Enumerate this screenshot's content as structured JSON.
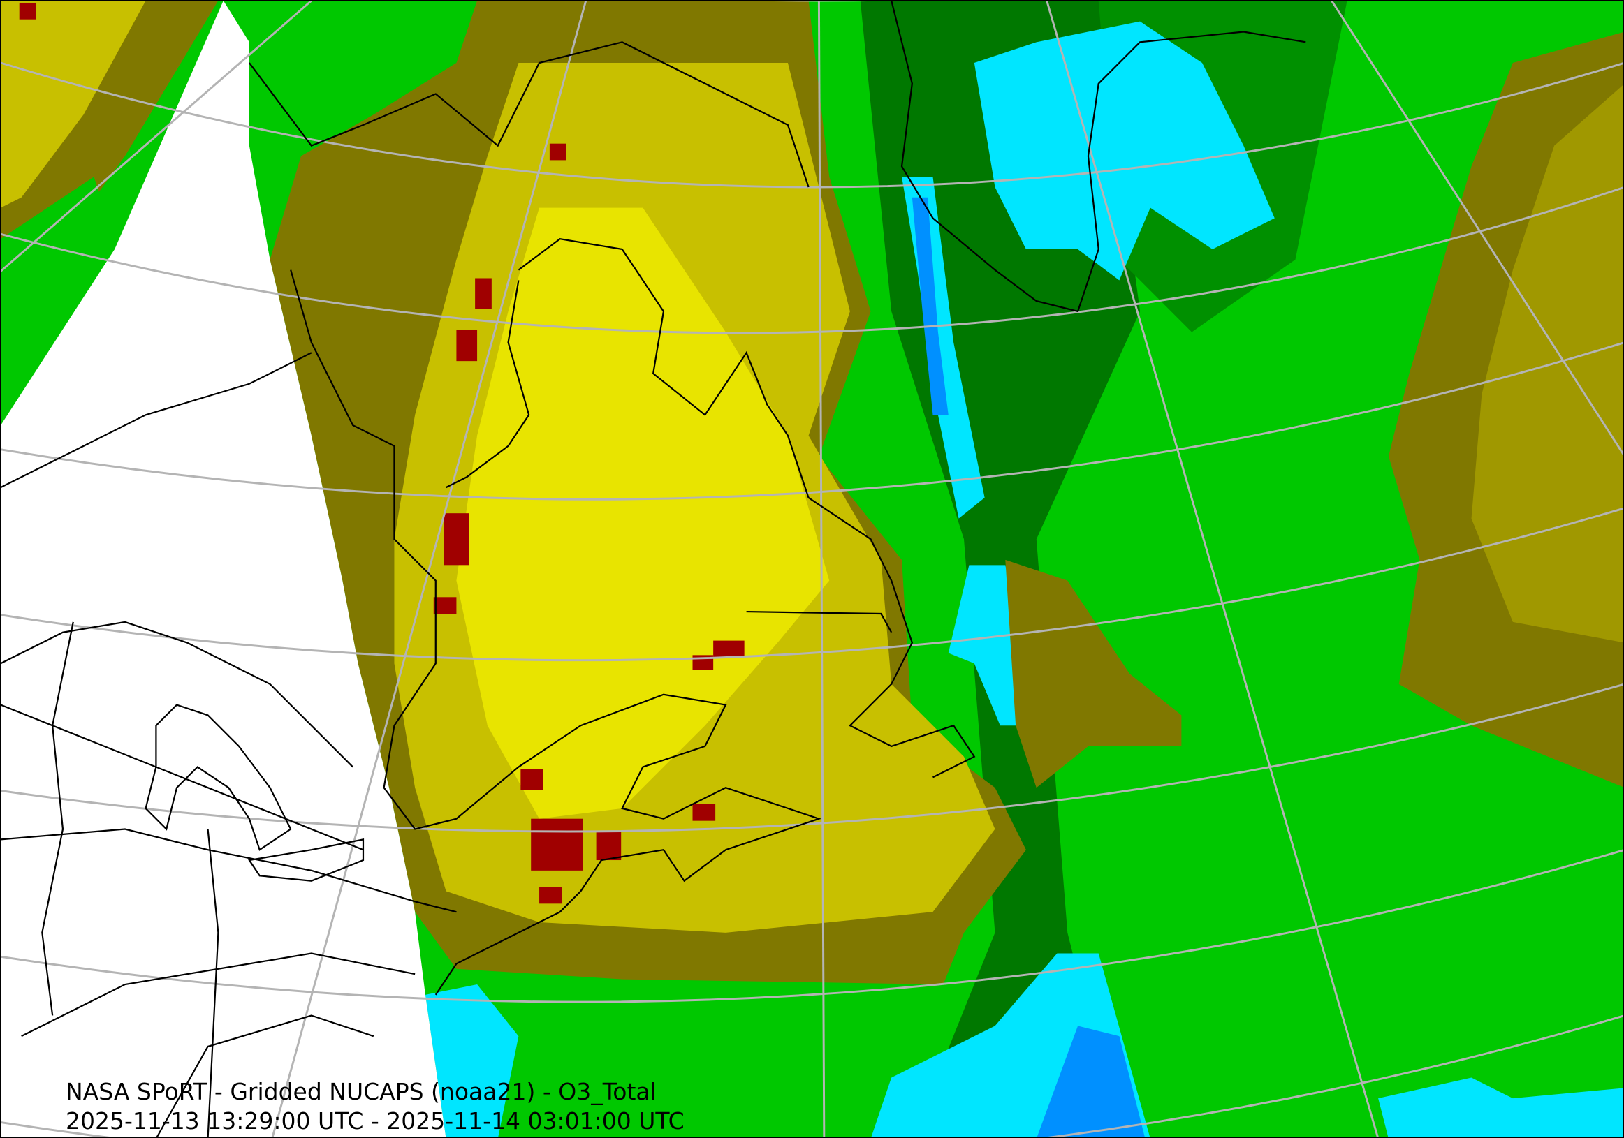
{
  "map": {
    "title_line1": "NASA SPoRT - Gridded NUCAPS (noaa21) - O3_Total",
    "title_line2": "2025-11-13 13:29:00 UTC - 2025-11-14 03:01:00 UTC",
    "product": "O3_Total",
    "satellite": "noaa21",
    "colors": {
      "no_data": "#ffffff",
      "green": "#00c800",
      "bright_green": "#00e600",
      "dark_green": "#007800",
      "olive": "#807800",
      "yellow_olive": "#c8c000",
      "yellow": "#f0f000",
      "cyan": "#00e6ff",
      "blue": "#0090ff",
      "dark_red": "#a00000",
      "graticule": "#b4b4b4",
      "coastline": "#000000"
    }
  }
}
